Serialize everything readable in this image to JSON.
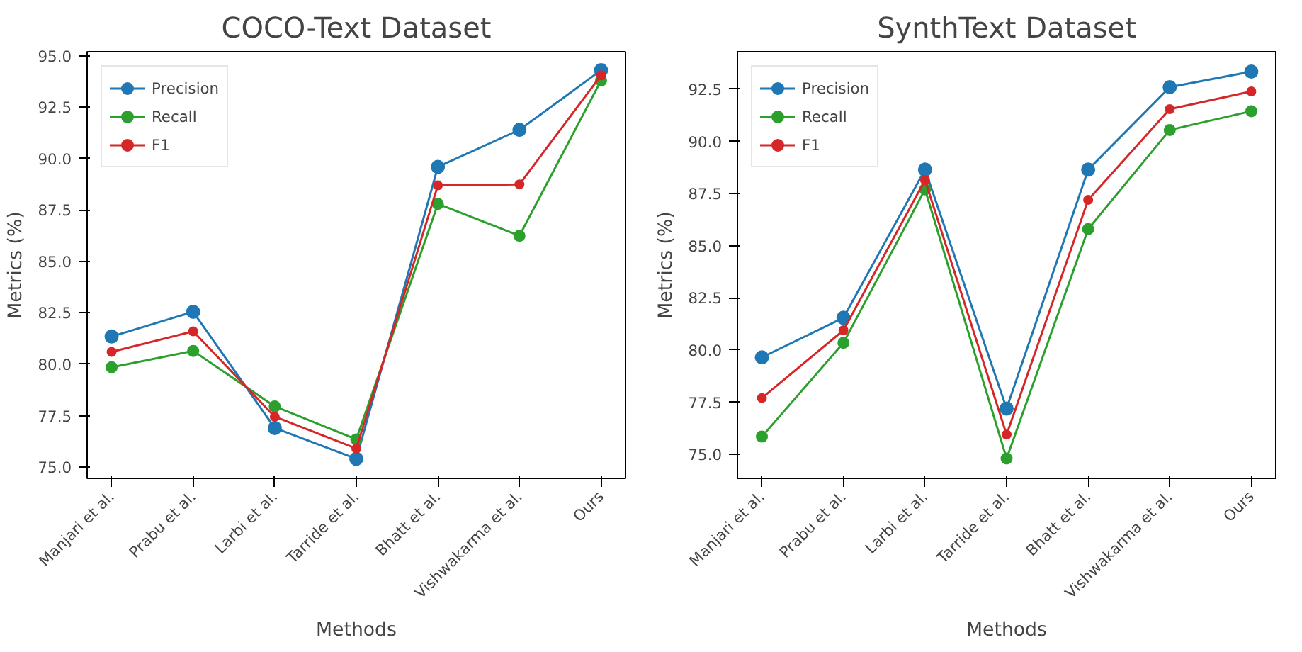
{
  "chart_data": [
    {
      "type": "line",
      "title": "COCO-Text Dataset",
      "xlabel": "Methods",
      "ylabel": "Metrics (%)",
      "categories": [
        "Manjari et al.",
        "Prabu et al.",
        "Larbi et al.",
        "Tarride et al.",
        "Bhatt et al.",
        "Vishwakarma et al.",
        "Ours"
      ],
      "series": [
        {
          "name": "Precision",
          "color": "#1f77b4",
          "values": [
            81.35,
            82.55,
            76.9,
            75.4,
            89.6,
            91.4,
            94.3
          ]
        },
        {
          "name": "Recall",
          "color": "#2ca02c",
          "values": [
            79.85,
            80.65,
            77.95,
            76.35,
            87.8,
            86.25,
            93.8
          ]
        },
        {
          "name": "F1",
          "color": "#d62728",
          "values": [
            80.6,
            81.6,
            77.45,
            75.9,
            88.7,
            88.75,
            94.05
          ]
        }
      ],
      "ylim": [
        74.45,
        95.2
      ],
      "yticks": [
        {
          "value": 75,
          "label": "75.0"
        },
        {
          "value": 77.5,
          "label": "77.5"
        },
        {
          "value": 80,
          "label": "80.0"
        },
        {
          "value": 82.5,
          "label": "82.5"
        },
        {
          "value": 85,
          "label": "85.0"
        },
        {
          "value": 87.5,
          "label": "87.5"
        },
        {
          "value": 90,
          "label": "90.0"
        },
        {
          "value": 92.5,
          "label": "92.5"
        },
        {
          "value": 95,
          "label": "95.0"
        }
      ],
      "grid": false,
      "legend": "top left",
      "marker": "circle",
      "line_style": "solid"
    },
    {
      "type": "line",
      "title": "SynthText Dataset",
      "xlabel": "Methods",
      "ylabel": "Metrics (%)",
      "categories": [
        "Manjari et al.",
        "Prabu et al.",
        "Larbi et al.",
        "Tarride et al.",
        "Bhatt et al.",
        "Vishwakarma et al.",
        "Ours"
      ],
      "series": [
        {
          "name": "Precision",
          "color": "#1f77b4",
          "values": [
            79.65,
            81.55,
            88.65,
            77.2,
            88.65,
            92.6,
            93.35
          ]
        },
        {
          "name": "Recall",
          "color": "#2ca02c",
          "values": [
            75.85,
            80.35,
            87.7,
            74.8,
            85.8,
            90.55,
            91.45
          ]
        },
        {
          "name": "F1",
          "color": "#d62728",
          "values": [
            77.7,
            80.95,
            88.15,
            75.95,
            87.2,
            91.55,
            92.4
          ]
        }
      ],
      "ylim": [
        73.85,
        94.3
      ],
      "yticks": [
        {
          "value": 75,
          "label": "75.0"
        },
        {
          "value": 77.5,
          "label": "77.5"
        },
        {
          "value": 80,
          "label": "80.0"
        },
        {
          "value": 82.5,
          "label": "82.5"
        },
        {
          "value": 85,
          "label": "85.0"
        },
        {
          "value": 87.5,
          "label": "87.5"
        },
        {
          "value": 90,
          "label": "90.0"
        },
        {
          "value": 92.5,
          "label": "92.5"
        }
      ],
      "grid": false,
      "legend": "top left",
      "marker": "circle",
      "line_style": "solid"
    }
  ]
}
